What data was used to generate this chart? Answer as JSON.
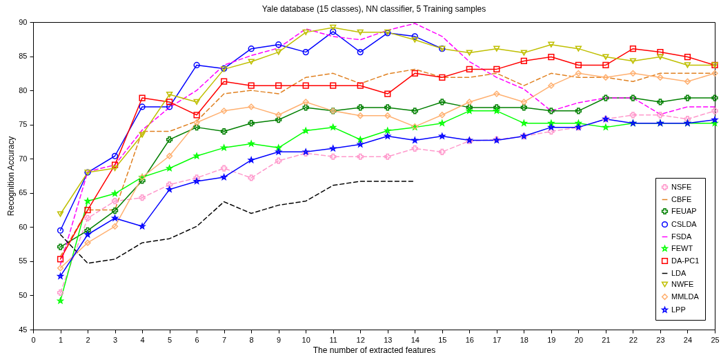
{
  "chart_data": {
    "type": "line",
    "title": "Yale database (15 classes), NN classifier, 5 Training samples",
    "xlabel": "The number of extracted features",
    "ylabel": "Recognition Accuracy",
    "x": [
      1,
      2,
      3,
      4,
      5,
      6,
      7,
      8,
      9,
      10,
      11,
      12,
      13,
      14,
      15,
      16,
      17,
      18,
      19,
      20,
      21,
      22,
      23,
      24,
      25
    ],
    "xlim": [
      0,
      25
    ],
    "xticks": [
      0,
      1,
      2,
      3,
      4,
      5,
      6,
      7,
      8,
      9,
      10,
      11,
      12,
      13,
      14,
      15,
      16,
      17,
      18,
      19,
      20,
      21,
      22,
      23,
      24,
      25
    ],
    "ylim": [
      45,
      90
    ],
    "yticks": [
      45,
      50,
      55,
      60,
      65,
      70,
      75,
      80,
      85,
      90
    ],
    "grid": false,
    "legend": "bottom right",
    "series": [
      {
        "name": "NSFE",
        "color": "#ff99cc",
        "line_style": "dashed",
        "marker": "cross",
        "values": [
          50.4,
          61.3,
          63.8,
          64.3,
          66.2,
          67.2,
          68.6,
          67.2,
          69.7,
          70.8,
          70.3,
          70.3,
          70.3,
          71.5,
          71.0,
          72.6,
          72.8,
          73.3,
          74.0,
          74.6,
          75.8,
          76.4,
          76.4,
          75.8,
          77.0
        ]
      },
      {
        "name": "CBFE",
        "color": "#e08020",
        "line_style": "dashed",
        "marker": "none",
        "values": [
          55.7,
          62.5,
          62.5,
          74.0,
          74.0,
          75.5,
          79.5,
          80.0,
          79.5,
          81.9,
          82.5,
          81.0,
          82.4,
          83.1,
          81.9,
          81.9,
          82.5,
          80.7,
          82.5,
          81.9,
          81.9,
          81.3,
          82.5,
          82.5,
          82.5
        ]
      },
      {
        "name": "FEUAP",
        "color": "#007f00",
        "line_style": "solid",
        "marker": "cross",
        "values": [
          57.1,
          59.5,
          62.4,
          66.8,
          72.8,
          74.6,
          74.0,
          75.2,
          75.7,
          77.5,
          77.0,
          77.5,
          77.5,
          77.0,
          78.3,
          77.5,
          77.5,
          77.5,
          77.0,
          77.0,
          78.9,
          78.9,
          78.3,
          78.9,
          78.9
        ]
      },
      {
        "name": "CSLDA",
        "color": "#0000ff",
        "line_style": "solid",
        "marker": "circle",
        "values": [
          59.5,
          68.0,
          70.4,
          77.6,
          77.6,
          83.7,
          83.2,
          86.1,
          86.7,
          85.6,
          88.6,
          85.6,
          88.4,
          87.9,
          86.1,
          null,
          null,
          null,
          null,
          null,
          null,
          null,
          null,
          null,
          null
        ]
      },
      {
        "name": "FSDA",
        "color": "#ff00ff",
        "line_style": "dashed",
        "marker": "none",
        "values": [
          54.5,
          68.1,
          69.1,
          74.2,
          77.5,
          80.0,
          83.7,
          85.1,
          86.2,
          89.0,
          87.9,
          87.4,
          88.8,
          89.8,
          87.9,
          84.2,
          81.9,
          80.2,
          77.0,
          78.2,
          78.9,
          78.9,
          76.5,
          77.6,
          77.6
        ]
      },
      {
        "name": "FEWT",
        "color": "#00ff00",
        "line_style": "solid",
        "marker": "star",
        "values": [
          49.2,
          63.8,
          64.9,
          67.3,
          68.6,
          70.4,
          71.6,
          72.2,
          71.6,
          74.1,
          74.6,
          72.8,
          74.1,
          74.6,
          75.2,
          77.0,
          77.0,
          75.2,
          75.2,
          75.2,
          74.6,
          75.2,
          75.2,
          75.2,
          75.2
        ]
      },
      {
        "name": "DA-PC1",
        "color": "#ff0000",
        "line_style": "solid",
        "marker": "square",
        "values": [
          55.3,
          62.5,
          69.1,
          78.9,
          78.3,
          76.4,
          81.3,
          80.7,
          80.7,
          80.7,
          80.7,
          80.7,
          79.5,
          82.5,
          81.9,
          83.1,
          83.1,
          84.3,
          84.9,
          83.7,
          83.7,
          86.1,
          85.6,
          84.9,
          83.7
        ]
      },
      {
        "name": "LDA",
        "color": "#000000",
        "line_style": "dashed",
        "marker": "none",
        "values": [
          58.9,
          54.7,
          55.3,
          57.7,
          58.3,
          60.1,
          63.7,
          62.0,
          63.2,
          63.8,
          66.1,
          66.7,
          66.7,
          66.7,
          null,
          null,
          null,
          null,
          null,
          null,
          null,
          null,
          null,
          null,
          null
        ]
      },
      {
        "name": "NWFE",
        "color": "#bfbf00",
        "line_style": "solid",
        "marker": "triangle",
        "values": [
          61.9,
          68.0,
          68.6,
          73.5,
          79.4,
          78.3,
          83.1,
          84.2,
          85.6,
          88.5,
          89.2,
          88.5,
          88.5,
          87.4,
          86.1,
          85.5,
          86.1,
          85.5,
          86.7,
          86.1,
          84.9,
          84.3,
          84.9,
          83.7,
          83.7
        ]
      },
      {
        "name": "MMLDA",
        "color": "#ffb070",
        "line_style": "solid",
        "marker": "diamond",
        "values": [
          54.0,
          57.7,
          60.1,
          67.3,
          70.4,
          75.3,
          77.0,
          77.6,
          76.4,
          78.3,
          77.0,
          76.3,
          76.3,
          74.7,
          76.4,
          78.3,
          79.5,
          78.3,
          80.7,
          82.5,
          81.9,
          82.5,
          81.9,
          81.3,
          82.5
        ]
      },
      {
        "name": "LPP",
        "color": "#0000ff",
        "line_style": "solid",
        "marker": "star",
        "values": [
          52.8,
          58.9,
          61.3,
          60.1,
          65.5,
          66.7,
          67.3,
          69.8,
          71.0,
          71.0,
          71.5,
          72.1,
          73.3,
          72.7,
          73.3,
          72.7,
          72.7,
          73.3,
          74.6,
          74.6,
          75.8,
          75.2,
          75.2,
          75.2,
          75.7
        ]
      }
    ]
  }
}
